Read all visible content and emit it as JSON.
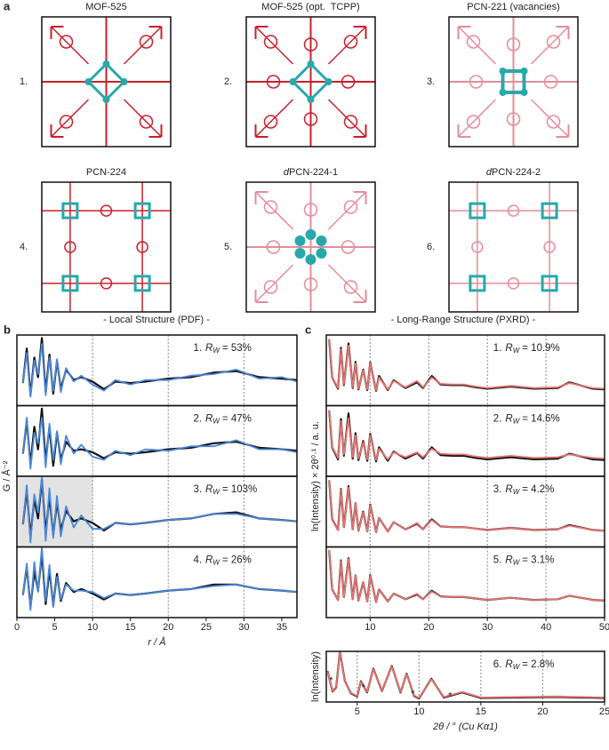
{
  "panel_labels": [
    "a",
    "b",
    "c"
  ],
  "panel_a": {
    "tiles": [
      {
        "number": "1.",
        "title": "MOF-525"
      },
      {
        "number": "2.",
        "title": "MOF-525 (opt.  TCPP)"
      },
      {
        "number": "3.",
        "title": "PCN-221 (vacancies)"
      },
      {
        "number": "4.",
        "title": "PCN-224"
      },
      {
        "number": "5.",
        "title_prefix": "d",
        "title": "PCN-224-1"
      },
      {
        "number": "6.",
        "title_prefix": "d",
        "title": "PCN-224-2"
      }
    ]
  },
  "chart_data": [
    {
      "type": "line",
      "title": "- Local Structure (PDF) -",
      "title_color": "#4a86d8",
      "xlabel": "r / Å",
      "ylabel": "G / Å⁻²",
      "xlim": [
        0,
        37
      ],
      "xticks": [
        0,
        5,
        10,
        15,
        20,
        25,
        30,
        35
      ],
      "grid_x": [
        10,
        20,
        30
      ],
      "ylim": [
        -1.5,
        3.2
      ],
      "x": [
        0.8,
        1.3,
        1.8,
        2.3,
        2.8,
        3.3,
        3.8,
        4.3,
        4.8,
        5.3,
        5.8,
        6.5,
        7.5,
        8.5,
        10,
        11.5,
        13,
        15,
        17,
        20,
        23,
        26,
        29,
        32,
        35,
        37
      ],
      "stacks": [
        {
          "annotation": {
            "prefix": "1.",
            "symbol": "R",
            "subscript": "W",
            "value": "= 53%"
          },
          "series": [
            {
              "color": "#111111",
              "values": [
                0,
                2.3,
                -0.8,
                1.7,
                0.4,
                3.0,
                -0.6,
                1.9,
                -0.7,
                1.5,
                -0.4,
                0.9,
                0.2,
                0.4,
                0.1,
                -0.4,
                0.1,
                0,
                0.1,
                0.3,
                0.4,
                0.7,
                0.8,
                0.4,
                0.3,
                0.2
              ]
            },
            {
              "color": "#4a86d8",
              "values": [
                0,
                2.0,
                -0.9,
                1.5,
                0.6,
                2.6,
                -0.8,
                1.7,
                -0.5,
                1.6,
                -0.6,
                1.0,
                0.1,
                0.5,
                -0.1,
                -0.5,
                0.2,
                -0.1,
                0.2,
                0.2,
                0.5,
                0.6,
                0.9,
                0.3,
                0.4,
                0.1
              ]
            }
          ]
        },
        {
          "annotation": {
            "prefix": "2.",
            "symbol": "R",
            "subscript": "W",
            "value": "= 47%"
          },
          "series": [
            {
              "color": "#111111",
              "values": [
                0,
                2.2,
                -0.7,
                1.8,
                0.3,
                3.0,
                -0.5,
                1.8,
                -0.8,
                1.4,
                -0.4,
                0.8,
                0.2,
                0.3,
                0.1,
                -0.3,
                0.1,
                0,
                0.1,
                0.3,
                0.4,
                0.7,
                0.8,
                0.4,
                0.3,
                0.2
              ]
            },
            {
              "color": "#4a86d8",
              "values": [
                0,
                2.4,
                -1.0,
                1.4,
                0.7,
                2.4,
                -0.9,
                2.0,
                -0.4,
                1.5,
                -0.7,
                1.2,
                0,
                0.6,
                -0.2,
                -0.4,
                0.2,
                -0.1,
                0.3,
                0.2,
                0.5,
                0.5,
                0.9,
                0.3,
                0.3,
                0.1
              ]
            }
          ]
        },
        {
          "annotation": {
            "prefix": "3.",
            "symbol": "R",
            "subscript": "W",
            "value": "= 103%"
          },
          "shade": [
            0,
            10
          ],
          "series": [
            {
              "color": "#111111",
              "values": [
                0,
                2.3,
                -0.8,
                1.7,
                0.4,
                3.0,
                -0.6,
                1.9,
                -0.7,
                1.5,
                -0.4,
                0.9,
                0.2,
                0.4,
                0.1,
                -0.4,
                0.1,
                0,
                0.1,
                0.3,
                0.4,
                0.7,
                0.8,
                0.4,
                0.3,
                0.2
              ]
            },
            {
              "color": "#4a86d8",
              "values": [
                0,
                2.6,
                -1.2,
                2.0,
                0.8,
                3.1,
                -1.1,
                2.4,
                -0.9,
                1.9,
                -0.8,
                1.2,
                -0.2,
                0.6,
                -0.3,
                -0.3,
                0.1,
                0,
                0.1,
                0.3,
                0.4,
                0.7,
                0.7,
                0.4,
                0.3,
                0.2
              ]
            }
          ]
        },
        {
          "annotation": {
            "prefix": "4.",
            "symbol": "R",
            "subscript": "W",
            "value": "= 26%"
          },
          "series": [
            {
              "color": "#111111",
              "values": [
                0,
                1.9,
                -0.8,
                1.6,
                0.3,
                2.8,
                -0.6,
                1.7,
                -0.7,
                1.4,
                -0.4,
                0.8,
                0.2,
                0.4,
                0.1,
                -0.3,
                0.1,
                0,
                0.1,
                0.3,
                0.4,
                0.7,
                0.7,
                0.4,
                0.3,
                0.2
              ]
            },
            {
              "color": "#4a86d8",
              "values": [
                0,
                2.1,
                -1.0,
                2.2,
                0.2,
                3.2,
                -0.4,
                2.0,
                -0.8,
                1.2,
                -0.3,
                0.7,
                0.3,
                0.3,
                0.2,
                -0.2,
                0.1,
                0,
                0.1,
                0.3,
                0.4,
                0.6,
                0.7,
                0.4,
                0.3,
                0.2
              ]
            }
          ]
        }
      ]
    },
    {
      "type": "line",
      "title": "- Long-Range Structure (PXRD) -",
      "title_color": "#e8736f",
      "ylabel": "ln(Intensity) × 2θ⁰·¹ / a. u.",
      "xlim": [
        2.5,
        50
      ],
      "xticks": [
        10,
        20,
        30,
        40,
        50
      ],
      "grid_x": [
        10,
        20,
        30,
        40
      ],
      "ylim": [
        0,
        10
      ],
      "x": [
        3,
        3.5,
        4.5,
        5,
        5.5,
        6.3,
        7,
        7.5,
        8,
        8.8,
        9.5,
        10,
        11,
        11.5,
        13,
        14,
        16,
        18,
        19,
        20.5,
        22,
        24,
        26,
        28,
        30,
        34,
        38,
        42,
        44,
        48,
        50
      ],
      "stacks": [
        {
          "annotation": {
            "prefix": "1.",
            "symbol": "R",
            "subscript": "W",
            "value": "= 10.9%"
          },
          "series": [
            {
              "color": "#111111",
              "values": [
                9.3,
                4,
                2.4,
                8.2,
                2.9,
                8.8,
                2.5,
                6.2,
                2.3,
                5.1,
                2.2,
                6.1,
                2.1,
                4.2,
                2.2,
                3.6,
                2.5,
                3.3,
                2.5,
                4.2,
                3.0,
                2.9,
                2.9,
                2.6,
                2.4,
                2.7,
                2.4,
                2.5,
                3.3,
                2.4,
                2.3
              ]
            },
            {
              "color": "#e8736f",
              "values": [
                9.5,
                4,
                2.5,
                8,
                3,
                8.5,
                2.6,
                6,
                2.4,
                5,
                2.3,
                6,
                2.2,
                4,
                2.3,
                3.5,
                2.6,
                3.5,
                2.6,
                4,
                3.1,
                3,
                3,
                2.7,
                2.5,
                2.8,
                2.5,
                2.6,
                3.2,
                2.5,
                2.4
              ]
            }
          ]
        },
        {
          "annotation": {
            "prefix": "2.",
            "symbol": "R",
            "subscript": "W",
            "value": "= 14.6%"
          },
          "series": [
            {
              "color": "#111111",
              "values": [
                9.3,
                4.1,
                2.4,
                8.1,
                2.9,
                8.9,
                2.5,
                6.1,
                2.3,
                5.0,
                2.2,
                6.0,
                2.1,
                4.1,
                2.2,
                3.5,
                2.5,
                3.3,
                2.5,
                4.1,
                3.0,
                2.9,
                2.9,
                2.6,
                2.4,
                2.7,
                2.4,
                2.5,
                3.2,
                2.4,
                2.3
              ]
            },
            {
              "color": "#e8736f",
              "values": [
                9.4,
                4.2,
                2.6,
                7.8,
                3.1,
                8.2,
                2.7,
                5.8,
                2.5,
                4.8,
                2.4,
                5.8,
                2.3,
                3.9,
                2.4,
                3.4,
                2.7,
                3.4,
                2.7,
                3.9,
                3.2,
                3.1,
                3.1,
                2.8,
                2.6,
                2.9,
                2.6,
                2.7,
                3.1,
                2.6,
                2.5
              ]
            }
          ]
        },
        {
          "annotation": {
            "prefix": "3.",
            "symbol": "R",
            "subscript": "W",
            "value": "= 4.2%"
          },
          "series": [
            {
              "color": "#111111",
              "values": [
                9.4,
                3.9,
                2.4,
                8.2,
                2.8,
                8.6,
                2.5,
                6.2,
                2.3,
                5.0,
                2.2,
                6.0,
                2.1,
                4.1,
                2.2,
                3.5,
                2.5,
                3.3,
                2.5,
                3.9,
                2.9,
                2.8,
                2.8,
                2.6,
                2.4,
                2.7,
                2.4,
                2.5,
                3.1,
                2.4,
                2.3
              ]
            },
            {
              "color": "#e8736f",
              "values": [
                9.5,
                3.8,
                2.4,
                8.1,
                2.8,
                8.4,
                2.5,
                6.2,
                2.3,
                4.9,
                2.2,
                5.9,
                2.1,
                4.1,
                2.2,
                3.5,
                2.5,
                3.4,
                2.5,
                3.8,
                2.9,
                2.8,
                2.8,
                2.6,
                2.4,
                2.7,
                2.4,
                2.5,
                3.0,
                2.4,
                2.3
              ]
            }
          ]
        },
        {
          "annotation": {
            "prefix": "5.",
            "symbol": "R",
            "subscript": "W",
            "value": "= 3.1%"
          },
          "series": [
            {
              "color": "#111111",
              "values": [
                9.5,
                4.0,
                2.5,
                8.1,
                2.9,
                8.4,
                2.6,
                6.0,
                2.4,
                5.0,
                2.3,
                6.0,
                2.2,
                4.0,
                2.3,
                3.4,
                2.6,
                3.3,
                2.6,
                3.8,
                3.0,
                2.9,
                2.9,
                2.7,
                2.5,
                2.8,
                2.5,
                2.6,
                3.1,
                2.5,
                2.4
              ]
            },
            {
              "color": "#e8736f",
              "values": [
                9.6,
                4.0,
                2.5,
                8.0,
                2.9,
                8.3,
                2.6,
                6.0,
                2.4,
                5.0,
                2.3,
                5.9,
                2.2,
                4.0,
                2.3,
                3.4,
                2.6,
                3.4,
                2.6,
                3.7,
                3.0,
                2.9,
                2.9,
                2.7,
                2.5,
                2.8,
                2.5,
                2.6,
                3.1,
                2.5,
                2.4
              ]
            }
          ]
        }
      ]
    },
    {
      "type": "line",
      "xlabel": "2θ / ° (Cu Kα1)",
      "ylabel": "ln(Intensity)",
      "xlim": [
        2.5,
        25
      ],
      "xticks": [
        5,
        10,
        15,
        20,
        25
      ],
      "grid_x": [
        5,
        10,
        15,
        20
      ],
      "ylim": [
        0,
        10
      ],
      "x": [
        2.6,
        3,
        3.3,
        3.6,
        4,
        4.5,
        5,
        5.3,
        5.8,
        6.3,
        7,
        7.8,
        8.5,
        9,
        9.6,
        10,
        11,
        12,
        13.5,
        15,
        18,
        21,
        25
      ],
      "stacks": [
        {
          "annotation": {
            "prefix": "6.",
            "symbol": "R",
            "subscript": "W",
            "value": "= 2.8%"
          },
          "series": [
            {
              "color": "#111111",
              "values": [
                6.1,
                2.1,
                2.9,
                10,
                4.1,
                1.7,
                1.1,
                4.1,
                1.9,
                6.6,
                2.2,
                7.1,
                1.9,
                5.6,
                1.2,
                0.7,
                4.6,
                0.9,
                1.9,
                0.8,
                0.9,
                1.0,
                0.8
              ]
            },
            {
              "color": "#e8736f",
              "values": [
                6,
                2.2,
                3,
                10,
                4,
                1.8,
                1.2,
                4,
                2,
                6.5,
                2.3,
                7,
                2,
                5.5,
                1.3,
                0.8,
                4.5,
                1,
                2,
                0.9,
                1,
                1.1,
                0.9
              ]
            }
          ],
          "markers": [
            {
              "x": 2.9,
              "y": 4.2,
              "label": "*"
            },
            {
              "x": 5.5,
              "y": 2.8,
              "label": "*"
            },
            {
              "x": 9.5,
              "y": 1.6,
              "label": "*"
            },
            {
              "x": 12.5,
              "y": 1.1,
              "label": "*"
            }
          ]
        }
      ]
    }
  ]
}
